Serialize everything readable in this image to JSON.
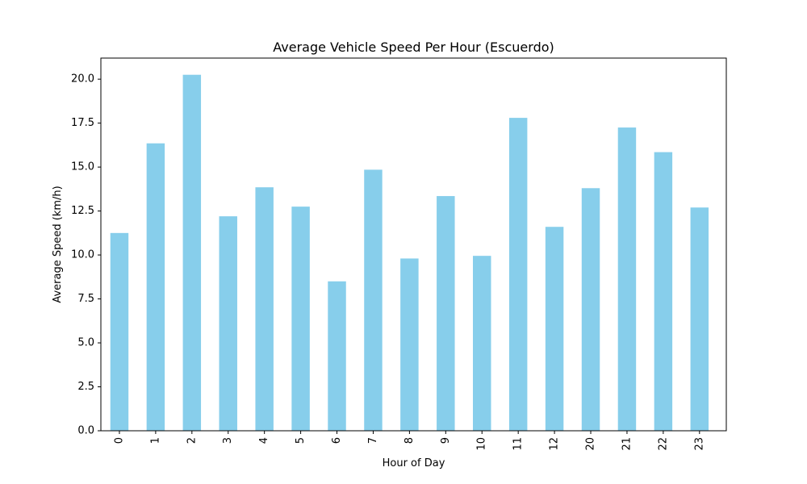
{
  "chart_data": {
    "type": "bar",
    "title": "Average Vehicle Speed Per Hour (Escuerdo)",
    "xlabel": "Hour of Day",
    "ylabel": "Average Speed (km/h)",
    "categories": [
      "0",
      "1",
      "2",
      "3",
      "4",
      "5",
      "6",
      "7",
      "8",
      "9",
      "10",
      "11",
      "12",
      "20",
      "21",
      "22",
      "23"
    ],
    "values": [
      11.25,
      16.35,
      20.25,
      12.2,
      13.85,
      12.75,
      8.5,
      14.85,
      9.8,
      13.35,
      9.95,
      17.8,
      11.6,
      13.8,
      17.25,
      15.85,
      12.7
    ],
    "ylim": [
      0,
      21.2
    ],
    "yticks": [
      0,
      2.5,
      5.0,
      7.5,
      10.0,
      12.5,
      15.0,
      17.5,
      20.0
    ],
    "ytick_labels": [
      "0.0",
      "2.5",
      "5.0",
      "7.5",
      "10.0",
      "12.5",
      "15.0",
      "17.5",
      "20.0"
    ],
    "bar_color": "#87CEEB",
    "grid": false,
    "legend": "none"
  }
}
